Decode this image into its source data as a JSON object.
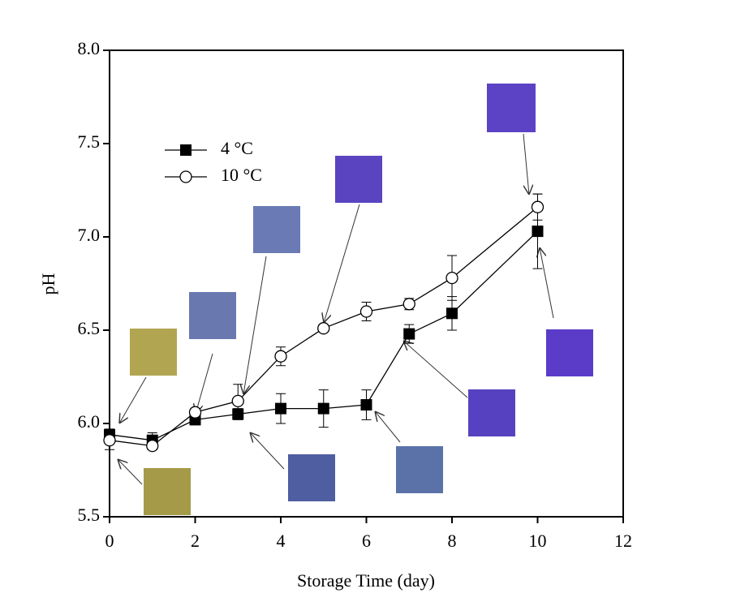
{
  "chart_data": {
    "type": "line",
    "x_label": "Storage Time (day)",
    "y_label": "pH",
    "x": [
      0,
      1,
      2,
      3,
      4,
      5,
      6,
      7,
      8,
      10
    ],
    "series": [
      {
        "name": "4 °C",
        "color": "#000000",
        "marker": "square",
        "values": [
          5.94,
          5.91,
          6.02,
          6.05,
          6.08,
          6.08,
          6.1,
          6.48,
          6.59,
          7.03
        ],
        "errors": [
          0.03,
          0.04,
          0.02,
          0.03,
          0.08,
          0.1,
          0.08,
          0.05,
          0.09,
          0.2
        ]
      },
      {
        "name": "10 °C",
        "color": "#000000",
        "marker": "circle",
        "values": [
          5.91,
          5.88,
          6.06,
          6.12,
          6.36,
          6.51,
          6.6,
          6.64,
          6.78,
          7.16
        ],
        "errors": [
          0.05,
          0.02,
          0.02,
          0.09,
          0.05,
          0.02,
          0.05,
          0.03,
          0.12,
          0.07
        ]
      }
    ],
    "xlim": [
      0,
      12
    ],
    "xticks": [
      0,
      2,
      4,
      6,
      8,
      10,
      12
    ],
    "ylim": [
      5.5,
      8.0
    ],
    "yticks": [
      5.5,
      {
        "value": 6,
        "label": "6.0"
      },
      6.5,
      {
        "value": 7,
        "label": "7.0"
      },
      7.5,
      {
        "value": 8,
        "label": "8.0"
      }
    ],
    "legend": "upper left"
  }
}
